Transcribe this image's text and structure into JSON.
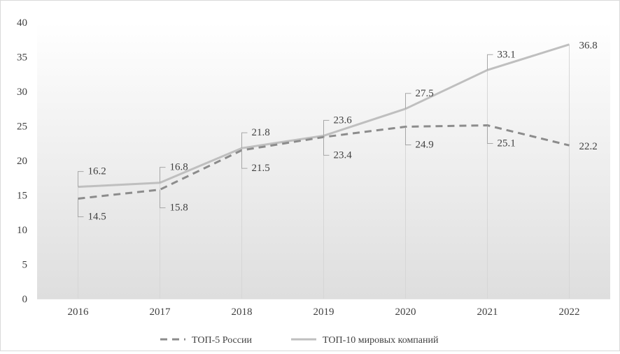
{
  "chart_data": {
    "type": "line",
    "categories": [
      "2016",
      "2017",
      "2018",
      "2019",
      "2020",
      "2021",
      "2022"
    ],
    "series": [
      {
        "name": "ТОП-5 России",
        "values": [
          14.5,
          15.8,
          21.5,
          23.4,
          24.9,
          25.1,
          22.2
        ],
        "color": "#8c8c8c",
        "style": "dashed"
      },
      {
        "name": "ТОП-10 мировых компаний",
        "values": [
          16.2,
          16.8,
          21.8,
          23.6,
          27.5,
          33.1,
          36.8
        ],
        "color": "#bfbfbf",
        "style": "solid"
      }
    ],
    "ylim": [
      0,
      40
    ],
    "yticks": [
      0,
      5,
      10,
      15,
      20,
      25,
      30,
      35,
      40
    ],
    "grid": false,
    "legend_position": "bottom",
    "plot_background": "gradient-gray",
    "data_labels": true
  }
}
